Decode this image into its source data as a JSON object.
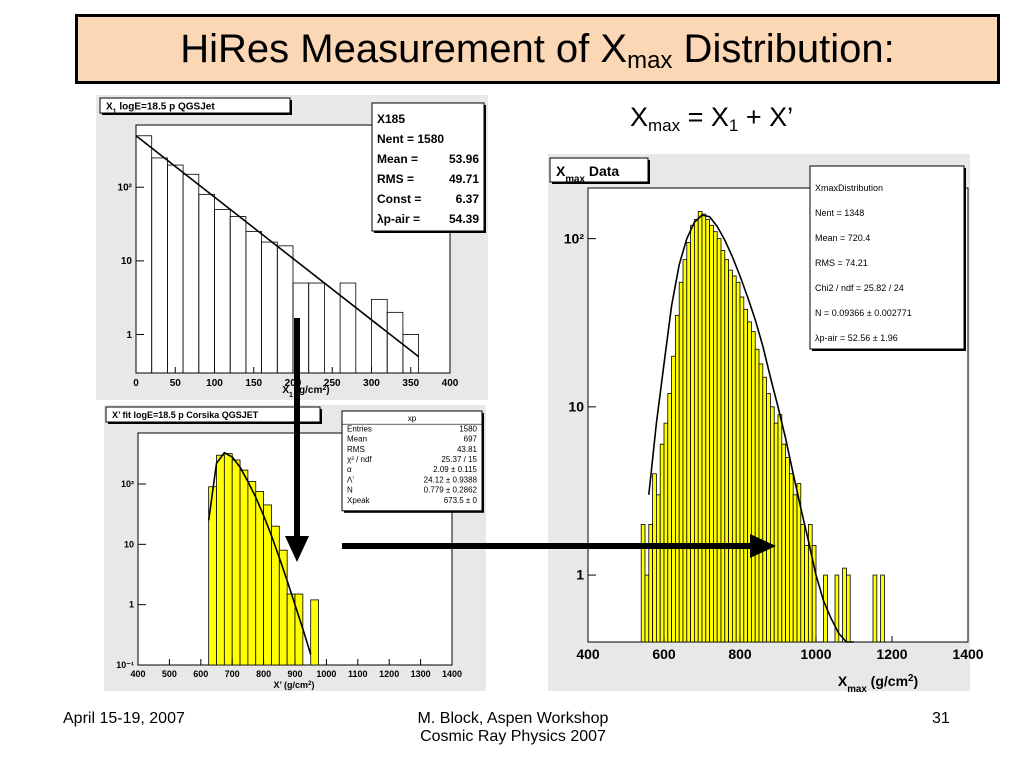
{
  "slide": {
    "title_main": "HiRes Measurement of X",
    "title_sub": "max",
    "title_end": " Distribution:",
    "formula_a": "X",
    "formula_a_sub": "max",
    "formula_b": " = X",
    "formula_b_sub": "1",
    "formula_c": " + X’",
    "footer_left": "April 15-19, 2007",
    "footer_center_1": "M. Block, Aspen Workshop",
    "footer_center_2": "Cosmic Ray Physics 2007",
    "footer_right": "31"
  },
  "chart_data": [
    {
      "id": "x1",
      "type": "bar",
      "histogram_title": "X",
      "histogram_title_sub": "1",
      "histogram_title_rest": " logE=18.5 p QGSJet",
      "xlabel": "X",
      "xlabel_sub": "1",
      "xlabel_rest": " (g/cm",
      "xlabel_sup": "2",
      "xlabel_end": ")",
      "xlim": [
        0,
        400
      ],
      "ylim": [
        0.3,
        700
      ],
      "yscale": "log",
      "xticks": [
        0,
        50,
        100,
        150,
        200,
        250,
        300,
        350,
        400
      ],
      "yticks": [
        1,
        10,
        100
      ],
      "ytick_labels": [
        "1",
        "10",
        "10²"
      ],
      "bin_width": 20,
      "bin_starts": [
        0,
        20,
        40,
        60,
        80,
        100,
        120,
        140,
        160,
        180,
        200,
        220,
        240,
        260,
        280,
        300,
        320,
        340,
        360
      ],
      "bin_values": [
        500,
        250,
        200,
        150,
        80,
        50,
        40,
        25,
        18,
        16,
        5,
        5,
        0.3,
        5,
        0.3,
        3,
        2,
        1,
        0.3
      ],
      "fit_line": {
        "x": [
          0,
          360
        ],
        "y": [
          500,
          0.5
        ]
      },
      "stats": [
        {
          "label": "X185",
          "value": ""
        },
        {
          "label": "Nent = 1580",
          "value": ""
        },
        {
          "label": "Mean  =",
          "value": "53.96"
        },
        {
          "label": "RMS   =",
          "value": "49.71"
        },
        {
          "label": "Const    =",
          "value": "6.37"
        },
        {
          "label": "λp-air  =",
          "value": "54.39"
        }
      ]
    },
    {
      "id": "xprime",
      "type": "bar",
      "histogram_title": "X’ fit logE=18.5 p Corsika QGSJET",
      "xlabel": "X’ (g/cm",
      "xlabel_sup": "2",
      "xlabel_end": ")",
      "xlim": [
        400,
        1400
      ],
      "ylim": [
        0.1,
        700
      ],
      "yscale": "log",
      "xticks": [
        400,
        500,
        600,
        700,
        800,
        900,
        1000,
        1100,
        1200,
        1300,
        1400
      ],
      "yticks": [
        0.1,
        1,
        10,
        100
      ],
      "ytick_labels": [
        "10⁻¹",
        "1",
        "10",
        "10²"
      ],
      "bin_width": 25,
      "bin_starts": [
        625,
        650,
        675,
        700,
        725,
        750,
        775,
        800,
        825,
        850,
        875,
        900,
        925,
        950
      ],
      "bin_values": [
        90,
        300,
        320,
        250,
        170,
        110,
        75,
        45,
        20,
        8,
        1.5,
        1.5,
        0.1,
        1.2
      ],
      "fit_curve": {
        "x": [
          625,
          650,
          675,
          700,
          725,
          750,
          775,
          800,
          825,
          850,
          875,
          900,
          925,
          950
        ],
        "y": [
          25,
          220,
          330,
          280,
          190,
          110,
          60,
          30,
          14,
          6,
          2.5,
          1,
          0.4,
          0.15
        ]
      },
      "stats_header": "xp",
      "stats": [
        {
          "label": "Entries",
          "value": "1580"
        },
        {
          "label": "Mean",
          "value": "697"
        },
        {
          "label": "RMS",
          "value": "43.81"
        },
        {
          "label": "χ² / ndf",
          "value": "25.37 / 15"
        },
        {
          "label": "α",
          "value": "2.09 ± 0.115"
        },
        {
          "label": "Λ’",
          "value": "24.12 ± 0.9388"
        },
        {
          "label": "N",
          "value": "0.779 ± 0.2862"
        },
        {
          "label": "Xpeak",
          "value": "673.5 ±     0"
        }
      ]
    },
    {
      "id": "xmax",
      "type": "bar",
      "histogram_title": "X",
      "histogram_title_sub": "max",
      "histogram_title_rest": " Data",
      "xlabel": "X",
      "xlabel_sub": "max",
      "xlabel_rest": " (g/cm",
      "xlabel_sup": "2",
      "xlabel_end": ")",
      "xlim": [
        400,
        1400
      ],
      "ylim": [
        0.4,
        200
      ],
      "yscale": "log",
      "xticks": [
        400,
        600,
        800,
        1000,
        1200,
        1400
      ],
      "yticks": [
        1,
        10,
        100
      ],
      "ytick_labels": [
        "1",
        "10",
        "10²"
      ],
      "bin_width": 10,
      "bin_starts": [
        540,
        550,
        560,
        570,
        580,
        590,
        600,
        610,
        620,
        630,
        640,
        650,
        660,
        670,
        680,
        690,
        700,
        710,
        720,
        730,
        740,
        750,
        760,
        770,
        780,
        790,
        800,
        810,
        820,
        830,
        840,
        850,
        860,
        870,
        880,
        890,
        900,
        910,
        920,
        930,
        940,
        950,
        960,
        970,
        980,
        990,
        1000,
        1010,
        1020,
        1030,
        1040,
        1050,
        1060,
        1070,
        1080,
        1090,
        1100,
        1110,
        1120,
        1130,
        1140,
        1150,
        1160,
        1170
      ],
      "bin_values": [
        2,
        1,
        2,
        4,
        3,
        6,
        8,
        12,
        20,
        35,
        55,
        75,
        95,
        120,
        130,
        145,
        140,
        130,
        120,
        110,
        100,
        85,
        75,
        65,
        60,
        55,
        45,
        38,
        32,
        28,
        22,
        18,
        15,
        12,
        10,
        8,
        9,
        6,
        5,
        4,
        3,
        3.5,
        2,
        1.5,
        2,
        1.5,
        0.4,
        0.4,
        1,
        0.4,
        0.4,
        1,
        0.4,
        1.1,
        1,
        0.4,
        0.4,
        0.4,
        0.4,
        0.4,
        0.4,
        1,
        0.4,
        1
      ],
      "fit_curve": {
        "x": [
          560,
          580,
          600,
          620,
          640,
          660,
          680,
          700,
          720,
          740,
          760,
          780,
          800,
          820,
          840,
          860,
          880,
          900,
          920,
          940,
          960,
          980,
          1000,
          1020,
          1040,
          1060,
          1080,
          1100
        ],
        "y": [
          3,
          8,
          18,
          40,
          70,
          100,
          125,
          138,
          135,
          118,
          98,
          78,
          60,
          45,
          33,
          23,
          15,
          10,
          6.5,
          4,
          2.5,
          1.6,
          1,
          0.7,
          0.55,
          0.45,
          0.4,
          0.4
        ]
      },
      "stats": [
        {
          "label": "XmaxDistribution",
          "value": ""
        },
        {
          "label": "Nent = 1348",
          "value": ""
        },
        {
          "label": "Mean  = 720.4",
          "value": ""
        },
        {
          "label": "RMS   = 74.21",
          "value": ""
        },
        {
          "label": "Chi2 / ndf = 25.82 / 24",
          "value": ""
        },
        {
          "label": "N       = 0.09366 ± 0.002771",
          "value": ""
        },
        {
          "label": "λp-air = 52.56 ±  1.96",
          "value": ""
        }
      ]
    }
  ],
  "colors": {
    "histogram_fill": "#ffff00",
    "title_bg": "#fbd7b6",
    "panel_bg": "#e8e8e8"
  }
}
